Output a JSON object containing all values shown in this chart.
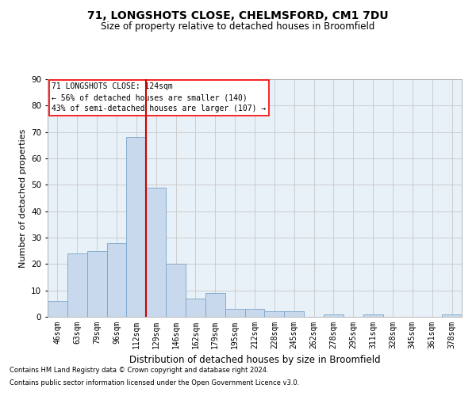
{
  "title": "71, LONGSHOTS CLOSE, CHELMSFORD, CM1 7DU",
  "subtitle": "Size of property relative to detached houses in Broomfield",
  "xlabel": "Distribution of detached houses by size in Broomfield",
  "ylabel": "Number of detached properties",
  "bar_color": "#c9d9ed",
  "bar_edge_color": "#7aa4c8",
  "background_color": "#ffffff",
  "plot_bg_color": "#e8f0f8",
  "grid_color": "#c8c8c8",
  "vline_color": "#cc0000",
  "categories": [
    "46sqm",
    "63sqm",
    "79sqm",
    "96sqm",
    "112sqm",
    "129sqm",
    "146sqm",
    "162sqm",
    "179sqm",
    "195sqm",
    "212sqm",
    "228sqm",
    "245sqm",
    "262sqm",
    "278sqm",
    "295sqm",
    "311sqm",
    "328sqm",
    "345sqm",
    "361sqm",
    "378sqm"
  ],
  "values": [
    6,
    24,
    25,
    28,
    68,
    49,
    20,
    7,
    9,
    3,
    3,
    2,
    2,
    0,
    1,
    0,
    1,
    0,
    0,
    0,
    1
  ],
  "ylim": [
    0,
    90
  ],
  "yticks": [
    0,
    10,
    20,
    30,
    40,
    50,
    60,
    70,
    80,
    90
  ],
  "annotation_line1": "71 LONGSHOTS CLOSE: 124sqm",
  "annotation_line2": "← 56% of detached houses are smaller (140)",
  "annotation_line3": "43% of semi-detached houses are larger (107) →",
  "footnote1": "Contains HM Land Registry data © Crown copyright and database right 2024.",
  "footnote2": "Contains public sector information licensed under the Open Government Licence v3.0.",
  "title_fontsize": 10,
  "subtitle_fontsize": 8.5,
  "ylabel_fontsize": 8,
  "xlabel_fontsize": 8.5,
  "tick_fontsize": 7,
  "annot_fontsize": 7,
  "footnote_fontsize": 6
}
